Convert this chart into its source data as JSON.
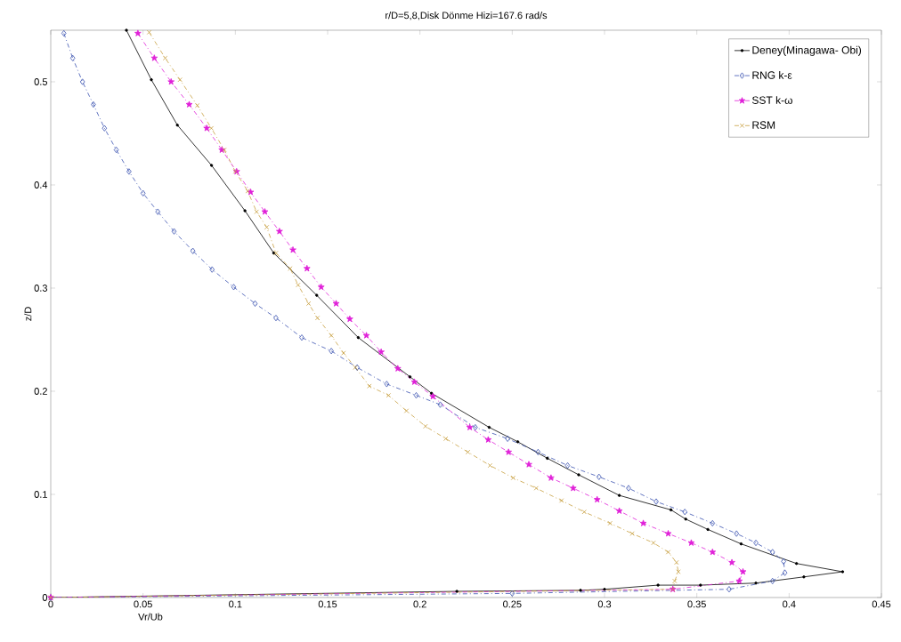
{
  "chart_data": {
    "type": "line",
    "title": "r/D=5,8,Disk Dönme Hizi=167.6 rad/s",
    "xlabel": "Vr/Ub",
    "ylabel": "z/D",
    "xlim": [
      0,
      0.45
    ],
    "ylim": [
      0,
      0.55
    ],
    "xticks": [
      0,
      0.05,
      0.1,
      0.15,
      0.2,
      0.25,
      0.3,
      0.35,
      0.4,
      0.45
    ],
    "yticks": [
      0,
      0.1,
      0.2,
      0.3,
      0.4,
      0.5
    ],
    "grid": false,
    "legend": "top right",
    "series": [
      {
        "name": "Deney(Minagawa- Obi)",
        "color": "#000000",
        "marker": "circle",
        "line_style": "solid",
        "x": [
          0.041,
          0.0545,
          0.0686,
          0.0871,
          0.1052,
          0.1208,
          0.1441,
          0.1666,
          0.1946,
          0.2063,
          0.2375,
          0.253,
          0.269,
          0.286,
          0.308,
          0.336,
          0.344,
          0.356,
          0.374,
          0.404,
          0.429,
          0.408,
          0.382,
          0.352,
          0.329,
          0.3,
          0.287,
          0.22,
          0
        ],
        "values": [
          0.55,
          0.502,
          0.458,
          0.419,
          0.375,
          0.334,
          0.293,
          0.252,
          0.214,
          0.198,
          0.165,
          0.151,
          0.135,
          0.119,
          0.099,
          0.085,
          0.076,
          0.066,
          0.052,
          0.033,
          0.025,
          0.02,
          0.014,
          0.012,
          0.012,
          0.008,
          0.007,
          0.006,
          0
        ]
      },
      {
        "name": "RNG k-ε",
        "color": "#3a52b0",
        "marker": "diamond",
        "line_style": "dashed",
        "x": [
          0.0071,
          0.0119,
          0.0172,
          0.0231,
          0.0291,
          0.0355,
          0.0424,
          0.05,
          0.058,
          0.0668,
          0.077,
          0.0874,
          0.0991,
          0.1107,
          0.122,
          0.136,
          0.152,
          0.166,
          0.182,
          0.198,
          0.211,
          0.23,
          0.2475,
          0.264,
          0.28,
          0.297,
          0.313,
          0.328,
          0.3435,
          0.3585,
          0.3715,
          0.382,
          0.391,
          0.397,
          0.3977,
          0.391,
          0.3675,
          0.25,
          0
        ],
        "values": [
          0.547,
          0.523,
          0.5,
          0.478,
          0.455,
          0.434,
          0.413,
          0.392,
          0.374,
          0.355,
          0.336,
          0.318,
          0.301,
          0.285,
          0.271,
          0.252,
          0.239,
          0.223,
          0.207,
          0.196,
          0.187,
          0.165,
          0.154,
          0.141,
          0.128,
          0.117,
          0.106,
          0.093,
          0.083,
          0.072,
          0.062,
          0.053,
          0.044,
          0.035,
          0.024,
          0.016,
          0.008,
          0.004,
          0
        ]
      },
      {
        "name": "SST k-ω",
        "color": "#e020d8",
        "marker": "star",
        "line_style": "dashed",
        "x": [
          0.0472,
          0.0561,
          0.0652,
          0.075,
          0.0845,
          0.0927,
          0.1007,
          0.1083,
          0.116,
          0.1239,
          0.1312,
          0.1388,
          0.1465,
          0.1546,
          0.162,
          0.171,
          0.179,
          0.188,
          0.197,
          0.207,
          0.227,
          0.237,
          0.248,
          0.259,
          0.271,
          0.283,
          0.296,
          0.308,
          0.321,
          0.3345,
          0.347,
          0.3585,
          0.369,
          0.375,
          0.373,
          0.337,
          0
        ],
        "values": [
          0.547,
          0.523,
          0.5,
          0.478,
          0.455,
          0.434,
          0.413,
          0.393,
          0.374,
          0.355,
          0.337,
          0.319,
          0.301,
          0.285,
          0.27,
          0.254,
          0.238,
          0.222,
          0.209,
          0.195,
          0.165,
          0.153,
          0.141,
          0.129,
          0.116,
          0.106,
          0.095,
          0.084,
          0.072,
          0.062,
          0.053,
          0.044,
          0.034,
          0.025,
          0.016,
          0.008,
          0
        ]
      },
      {
        "name": "RSM",
        "color": "#c8a040",
        "marker": "cross",
        "line_style": "dashed",
        "x": [
          0.0533,
          0.062,
          0.07,
          0.0794,
          0.087,
          0.094,
          0.1,
          0.1067,
          0.1115,
          0.117,
          0.122,
          0.1297,
          0.134,
          0.1397,
          0.1445,
          0.152,
          0.1586,
          0.165,
          0.1726,
          0.183,
          0.1927,
          0.203,
          0.214,
          0.226,
          0.238,
          0.2505,
          0.263,
          0.2767,
          0.289,
          0.303,
          0.315,
          0.3265,
          0.3345,
          0.339,
          0.34,
          0.338,
          0.337,
          0
        ],
        "values": [
          0.548,
          0.523,
          0.502,
          0.477,
          0.455,
          0.434,
          0.413,
          0.394,
          0.374,
          0.359,
          0.334,
          0.319,
          0.303,
          0.285,
          0.271,
          0.254,
          0.237,
          0.223,
          0.205,
          0.196,
          0.181,
          0.166,
          0.154,
          0.141,
          0.128,
          0.116,
          0.106,
          0.094,
          0.083,
          0.072,
          0.062,
          0.053,
          0.044,
          0.034,
          0.025,
          0.016,
          0.008,
          0
        ]
      }
    ]
  }
}
